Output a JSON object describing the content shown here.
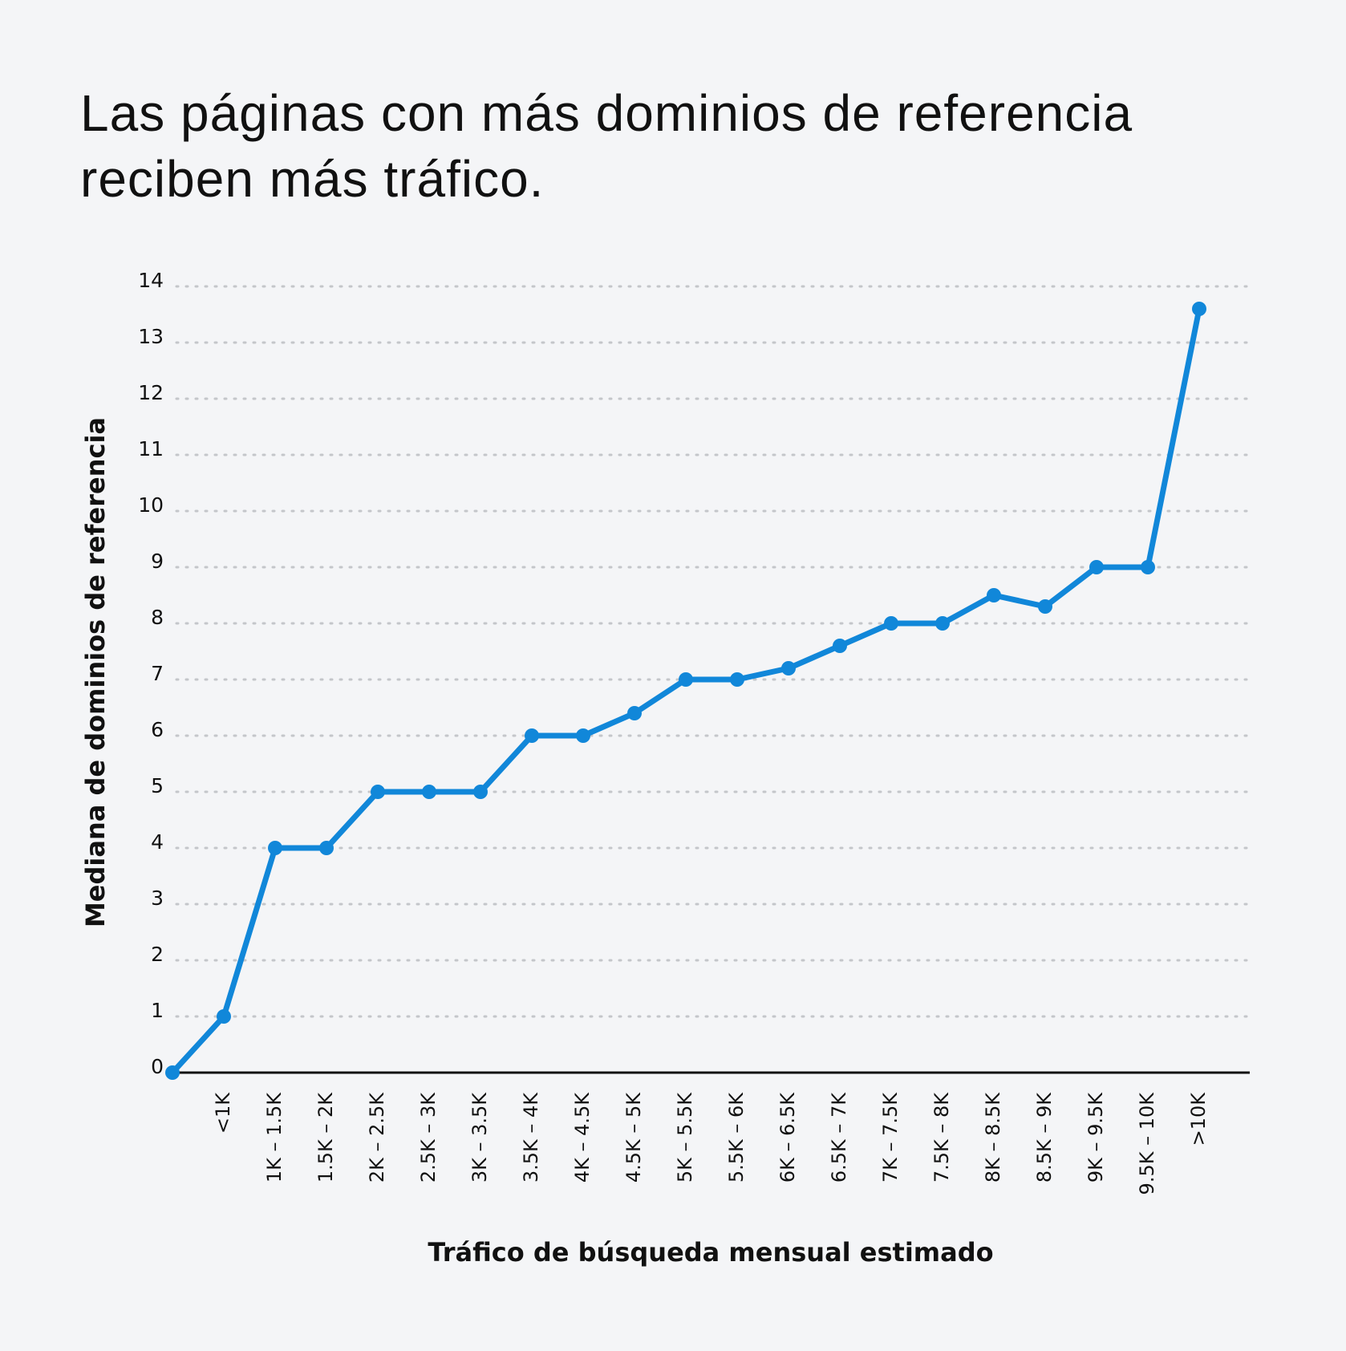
{
  "chart_data": {
    "type": "line",
    "title": "Las páginas con más dominios de referencia reciben más tráfico.",
    "x_label": "Tráfico de búsqueda mensual estimado",
    "y_label": "Mediana de dominios de referencia",
    "categories": [
      null,
      "<1K",
      "1K – 1.5K",
      "1.5K – 2K",
      "2K – 2.5K",
      "2.5K – 3K",
      "3K – 3.5K",
      "3.5K – 4K",
      "4K – 4.5K",
      "4.5K – 5K",
      "5K – 5.5K",
      "5.5K – 6K",
      "6K – 6.5K",
      "6.5K – 7K",
      "7K – 7.5K",
      "7.5K – 8K",
      "8K – 8.5K",
      "8.5K – 9K",
      "9K – 9.5K",
      "9.5K – 10K",
      ">10K"
    ],
    "series": [
      {
        "name": "Mediana de dominios de referencia",
        "color": "#1187d9",
        "values": [
          0,
          1,
          4,
          4,
          5,
          5,
          5,
          6,
          6,
          6.4,
          7,
          7,
          7.2,
          7.6,
          8,
          8,
          8.5,
          8.3,
          9,
          9,
          13.6
        ]
      }
    ],
    "ylim": [
      0,
      14
    ],
    "yticks": [
      0,
      1,
      2,
      3,
      4,
      5,
      6,
      7,
      8,
      9,
      10,
      11,
      12,
      13,
      14
    ],
    "grid": true
  }
}
